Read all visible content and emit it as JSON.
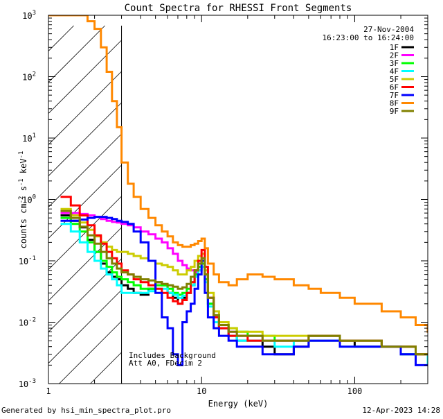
{
  "chart_data": {
    "type": "line",
    "title": "Count Spectra for RHESSI Front Segments",
    "date": "27-Nov-2004",
    "time_range": "16:23:00 to 16:24:00",
    "xlabel": "Energy (keV)",
    "ylabel_parts": {
      "base": "counts cm",
      "exp1": "-2",
      "mid1": " s",
      "exp2": "-1",
      "mid2": " keV",
      "exp3": "-1"
    },
    "xscale": "log",
    "yscale": "log",
    "xlim": [
      1,
      300
    ],
    "ylim": [
      0.001,
      1000
    ],
    "x_ticks": [
      {
        "v": 1,
        "label": "1"
      },
      {
        "v": 10,
        "label": "10"
      },
      {
        "v": 100,
        "label": "100"
      }
    ],
    "y_ticks": [
      {
        "v": 0.001,
        "base": "10",
        "exp": "-3"
      },
      {
        "v": 0.01,
        "base": "10",
        "exp": "-2"
      },
      {
        "v": 0.1,
        "base": "10",
        "exp": "-1"
      },
      {
        "v": 1,
        "base": "10",
        "exp": "0"
      },
      {
        "v": 10,
        "base": "10",
        "exp": "1"
      },
      {
        "v": 100,
        "base": "10",
        "exp": "2"
      },
      {
        "v": 1000,
        "base": "10",
        "exp": "3"
      }
    ],
    "hatched_region_max_keV": 3,
    "annotations": [
      "Includes Background",
      "Att A0, FDecim 2"
    ],
    "series": [
      {
        "name": "1F",
        "color": "#000000",
        "x": [
          1.2,
          1.4,
          1.6,
          1.8,
          2.0,
          2.2,
          2.4,
          2.6,
          2.8,
          3.0,
          3.3,
          3.6,
          4.0,
          4.5,
          5.0,
          5.5,
          6.0,
          6.5,
          7.0,
          7.5,
          8.0,
          8.5,
          9.0,
          9.5,
          10.0,
          10.5,
          11.0,
          12,
          13,
          15,
          17,
          20,
          25,
          30,
          40,
          50,
          60,
          80,
          100,
          150,
          200,
          250,
          300
        ],
        "y": [
          0.55,
          0.45,
          0.35,
          0.22,
          0.14,
          0.09,
          0.065,
          0.055,
          0.05,
          0.04,
          0.035,
          0.03,
          0.028,
          0.035,
          0.045,
          0.04,
          0.03,
          0.025,
          0.02,
          0.025,
          0.03,
          0.04,
          0.06,
          0.09,
          0.1,
          0.06,
          0.02,
          0.012,
          0.008,
          0.006,
          0.005,
          0.005,
          0.004,
          0.003,
          0.004,
          0.005,
          0.005,
          0.005,
          0.004,
          0.004,
          0.003,
          0.003,
          0.002
        ]
      },
      {
        "name": "2F",
        "color": "#ff00ff",
        "x": [
          1.2,
          1.4,
          1.6,
          1.8,
          2.0,
          2.2,
          2.4,
          2.6,
          2.8,
          3.0,
          3.3,
          3.6,
          4.0,
          4.5,
          5.0,
          5.5,
          6.0,
          6.5,
          7.0,
          7.5,
          8.0,
          8.5,
          9.0,
          9.5,
          10.0,
          10.5,
          11.0,
          12,
          13,
          15,
          17,
          20,
          25,
          30,
          40,
          50,
          60,
          80,
          100,
          150,
          200,
          250,
          300
        ],
        "y": [
          0.6,
          0.6,
          0.58,
          0.55,
          0.52,
          0.48,
          0.45,
          0.43,
          0.42,
          0.4,
          0.38,
          0.35,
          0.3,
          0.27,
          0.23,
          0.2,
          0.16,
          0.13,
          0.1,
          0.085,
          0.075,
          0.07,
          0.065,
          0.07,
          0.08,
          0.05,
          0.025,
          0.012,
          0.008,
          0.007,
          0.006,
          0.006,
          0.005,
          0.005,
          0.005,
          0.006,
          0.006,
          0.005,
          0.005,
          0.004,
          0.004,
          0.003,
          0.003
        ]
      },
      {
        "name": "3F",
        "color": "#00ff00",
        "x": [
          1.2,
          1.4,
          1.6,
          1.8,
          2.0,
          2.2,
          2.4,
          2.6,
          2.8,
          3.0,
          3.3,
          3.6,
          4.0,
          4.5,
          5.0,
          5.5,
          6.0,
          6.5,
          7.0,
          7.5,
          8.0,
          8.5,
          9.0,
          9.5,
          10.0,
          10.5,
          11.0,
          12,
          13,
          15,
          17,
          20,
          25,
          30,
          40,
          50,
          60,
          80,
          100,
          150,
          200,
          250,
          300
        ],
        "y": [
          0.5,
          0.4,
          0.3,
          0.2,
          0.14,
          0.1,
          0.08,
          0.065,
          0.055,
          0.05,
          0.045,
          0.04,
          0.035,
          0.035,
          0.04,
          0.04,
          0.035,
          0.03,
          0.028,
          0.03,
          0.035,
          0.045,
          0.06,
          0.08,
          0.09,
          0.05,
          0.02,
          0.012,
          0.009,
          0.008,
          0.007,
          0.006,
          0.006,
          0.005,
          0.005,
          0.006,
          0.006,
          0.005,
          0.005,
          0.004,
          0.004,
          0.003,
          0.003
        ]
      },
      {
        "name": "4F",
        "color": "#00ffff",
        "x": [
          1.2,
          1.4,
          1.6,
          1.8,
          2.0,
          2.2,
          2.4,
          2.6,
          2.8,
          3.0,
          3.3,
          3.6,
          4.0,
          4.5,
          5.0,
          5.5,
          6.0,
          6.5,
          7.0,
          7.5,
          8.0,
          8.5,
          9.0,
          9.5,
          10.0,
          10.5,
          11.0,
          12,
          13,
          15,
          17,
          20,
          25,
          30,
          40,
          50,
          60,
          80,
          100,
          150,
          200,
          250,
          300
        ],
        "y": [
          0.4,
          0.3,
          0.2,
          0.14,
          0.1,
          0.075,
          0.06,
          0.05,
          0.04,
          0.03,
          0.03,
          0.03,
          0.03,
          0.032,
          0.035,
          0.035,
          0.03,
          0.028,
          0.025,
          0.027,
          0.03,
          0.04,
          0.055,
          0.07,
          0.08,
          0.045,
          0.018,
          0.01,
          0.008,
          0.006,
          0.005,
          0.005,
          0.005,
          0.004,
          0.005,
          0.005,
          0.005,
          0.004,
          0.004,
          0.004,
          0.003,
          0.003,
          0.002
        ]
      },
      {
        "name": "5F",
        "color": "#cccc00",
        "x": [
          1.2,
          1.4,
          1.6,
          1.8,
          2.0,
          2.2,
          2.4,
          2.6,
          2.8,
          3.0,
          3.3,
          3.6,
          4.0,
          4.5,
          5.0,
          5.5,
          6.0,
          6.5,
          7.0,
          7.5,
          8.0,
          8.5,
          9.0,
          9.5,
          10.0,
          10.5,
          11.0,
          12,
          13,
          15,
          17,
          20,
          25,
          30,
          40,
          50,
          60,
          80,
          100,
          150,
          200,
          250,
          300
        ],
        "y": [
          0.7,
          0.55,
          0.42,
          0.32,
          0.25,
          0.2,
          0.17,
          0.15,
          0.14,
          0.14,
          0.13,
          0.12,
          0.11,
          0.1,
          0.09,
          0.085,
          0.08,
          0.07,
          0.06,
          0.06,
          0.07,
          0.08,
          0.1,
          0.12,
          0.13,
          0.07,
          0.03,
          0.015,
          0.01,
          0.008,
          0.007,
          0.007,
          0.006,
          0.006,
          0.006,
          0.006,
          0.006,
          0.005,
          0.005,
          0.004,
          0.004,
          0.003,
          0.003
        ]
      },
      {
        "name": "6F",
        "color": "#ff0000",
        "x": [
          1.2,
          1.4,
          1.6,
          1.8,
          2.0,
          2.2,
          2.4,
          2.6,
          2.8,
          3.0,
          3.3,
          3.6,
          4.0,
          4.5,
          5.0,
          5.5,
          6.0,
          6.5,
          7.0,
          7.5,
          8.0,
          8.5,
          9.0,
          9.5,
          10.0,
          10.5,
          11.0,
          12,
          13,
          15,
          17,
          20,
          25,
          30,
          40,
          50,
          60,
          80,
          100,
          150,
          200,
          250,
          300
        ],
        "y": [
          1.1,
          0.8,
          0.55,
          0.38,
          0.26,
          0.19,
          0.14,
          0.11,
          0.09,
          0.07,
          0.06,
          0.05,
          0.045,
          0.04,
          0.035,
          0.03,
          0.025,
          0.022,
          0.02,
          0.023,
          0.03,
          0.045,
          0.07,
          0.1,
          0.15,
          0.08,
          0.025,
          0.012,
          0.008,
          0.006,
          0.006,
          0.005,
          0.005,
          0.005,
          0.005,
          0.006,
          0.006,
          0.005,
          0.005,
          0.004,
          0.004,
          0.003,
          0.003
        ]
      },
      {
        "name": "7F",
        "color": "#0000ff",
        "x": [
          1.2,
          1.4,
          1.6,
          1.8,
          2.0,
          2.2,
          2.4,
          2.6,
          2.8,
          3.0,
          3.3,
          3.6,
          4.0,
          4.5,
          5.0,
          5.5,
          6.0,
          6.5,
          7.0,
          7.5,
          8.0,
          8.5,
          9.0,
          9.5,
          10.0,
          10.5,
          11.0,
          12,
          13,
          15,
          17,
          20,
          25,
          30,
          40,
          50,
          60,
          80,
          100,
          150,
          200,
          250,
          300
        ],
        "y": [
          0.45,
          0.45,
          0.47,
          0.5,
          0.52,
          0.52,
          0.5,
          0.48,
          0.45,
          0.43,
          0.4,
          0.3,
          0.2,
          0.1,
          0.03,
          0.012,
          0.008,
          0.003,
          0.002,
          0.01,
          0.015,
          0.02,
          0.035,
          0.06,
          0.1,
          0.03,
          0.012,
          0.008,
          0.006,
          0.005,
          0.004,
          0.004,
          0.003,
          0.003,
          0.004,
          0.005,
          0.005,
          0.004,
          0.004,
          0.004,
          0.003,
          0.002,
          0.002
        ]
      },
      {
        "name": "8F",
        "color": "#ff8800",
        "x": [
          1.0,
          1.3,
          1.6,
          1.8,
          2.0,
          2.2,
          2.4,
          2.6,
          2.8,
          3.0,
          3.3,
          3.6,
          4.0,
          4.5,
          5.0,
          5.5,
          6.0,
          6.5,
          7.0,
          7.5,
          8.0,
          8.5,
          9.0,
          9.5,
          10.0,
          10.5,
          11.0,
          12,
          13,
          15,
          17,
          20,
          25,
          30,
          40,
          50,
          60,
          80,
          100,
          150,
          200,
          250,
          300
        ],
        "y": [
          1000,
          1000,
          1000,
          800,
          600,
          300,
          120,
          40,
          15,
          4,
          1.8,
          1.1,
          0.7,
          0.5,
          0.38,
          0.3,
          0.25,
          0.2,
          0.18,
          0.17,
          0.17,
          0.18,
          0.19,
          0.21,
          0.23,
          0.16,
          0.09,
          0.06,
          0.045,
          0.04,
          0.05,
          0.06,
          0.055,
          0.05,
          0.04,
          0.035,
          0.03,
          0.025,
          0.02,
          0.015,
          0.012,
          0.009,
          0.007
        ]
      },
      {
        "name": "9F",
        "color": "#808000",
        "x": [
          1.2,
          1.4,
          1.6,
          1.8,
          2.0,
          2.2,
          2.4,
          2.6,
          2.8,
          3.0,
          3.3,
          3.6,
          4.0,
          4.5,
          5.0,
          5.5,
          6.0,
          6.5,
          7.0,
          7.5,
          8.0,
          8.5,
          9.0,
          9.5,
          10.0,
          10.5,
          11.0,
          12,
          13,
          15,
          17,
          20,
          25,
          30,
          40,
          50,
          60,
          80,
          100,
          150,
          200,
          250,
          300
        ],
        "y": [
          0.65,
          0.5,
          0.36,
          0.26,
          0.19,
          0.14,
          0.11,
          0.09,
          0.075,
          0.065,
          0.06,
          0.055,
          0.05,
          0.048,
          0.045,
          0.042,
          0.04,
          0.038,
          0.035,
          0.037,
          0.042,
          0.055,
          0.07,
          0.09,
          0.11,
          0.06,
          0.025,
          0.013,
          0.009,
          0.007,
          0.006,
          0.006,
          0.005,
          0.005,
          0.005,
          0.006,
          0.006,
          0.005,
          0.005,
          0.004,
          0.004,
          0.003,
          0.003
        ]
      }
    ]
  },
  "footer": {
    "left": "Generated by hsi_min_spectra_plot.pro",
    "right": "12-Apr-2023 14:28"
  }
}
